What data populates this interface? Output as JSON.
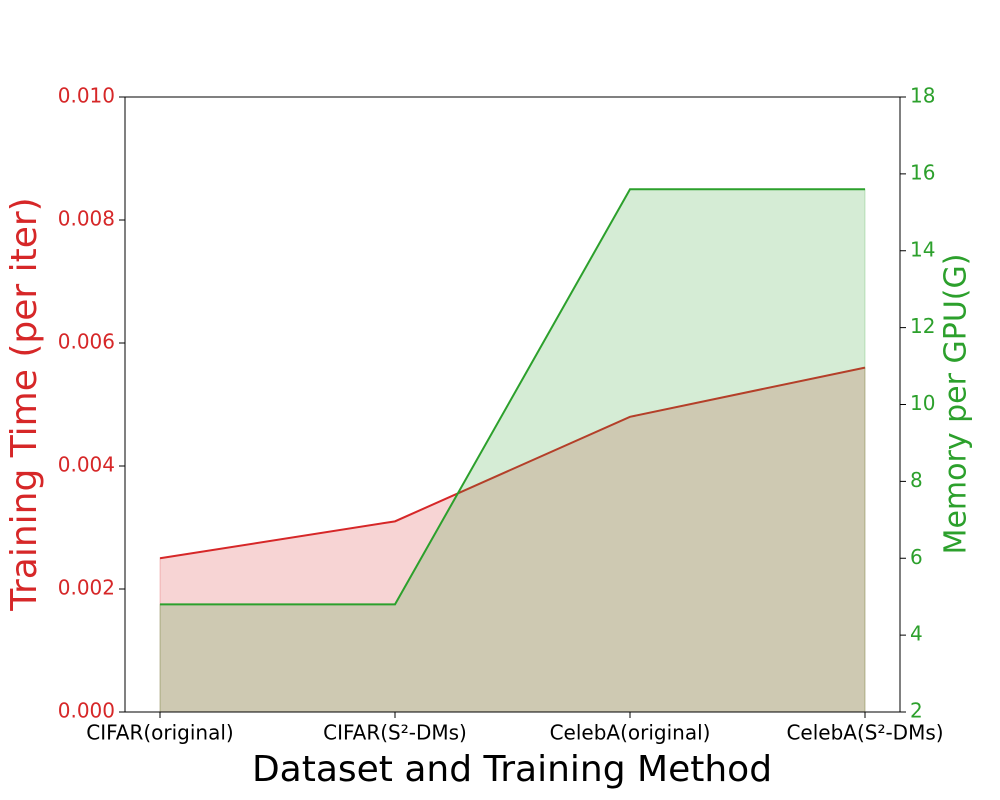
{
  "chart_data": {
    "type": "area",
    "x_label": "Dataset and Training Method",
    "y_label": "Training Time (per iter)",
    "y2_label": "Memory per GPU(G)",
    "categories": [
      "CIFAR(original)",
      "CIFAR(S²-DMs)",
      "CelebA(original)",
      "CelebA(S²-DMs)"
    ],
    "series": [
      {
        "name": "Training Time (per iter)",
        "color": "#d62728",
        "values": [
          0.0025,
          0.0031,
          0.0048,
          0.0056
        ]
      },
      {
        "name": "Memory per GPU(G)",
        "color": "#2ca02c",
        "axis": "y2",
        "values": [
          4.8,
          4.8,
          15.6,
          15.6
        ]
      }
    ],
    "ylim": [
      0,
      0.01
    ],
    "yticks": [
      {
        "value": 0,
        "label": "0.000"
      },
      {
        "value": 0.002,
        "label": "0.002"
      },
      {
        "value": 0.004,
        "label": "0.004"
      },
      {
        "value": 0.006,
        "label": "0.006"
      },
      {
        "value": 0.008,
        "label": "0.008"
      },
      {
        "value": 0.01,
        "label": "0.010"
      }
    ],
    "y2lim": [
      2,
      18
    ],
    "y2ticks": [
      2,
      4,
      6,
      8,
      10,
      12,
      14,
      16,
      18
    ]
  }
}
